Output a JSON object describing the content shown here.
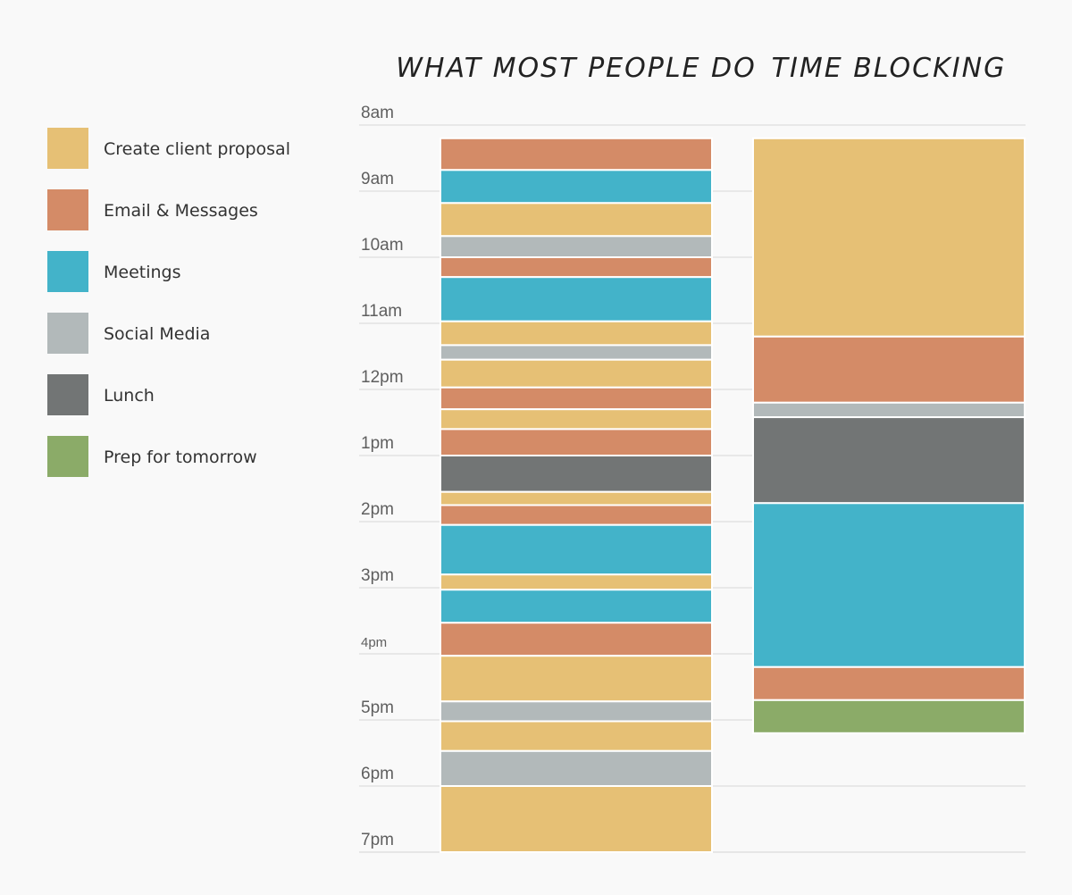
{
  "chart_data": {
    "type": "table",
    "title": "",
    "column_titles": [
      "WHAT MOST PEOPLE DO",
      "TIME BLOCKING"
    ],
    "time_labels": [
      "8am",
      "9am",
      "10am",
      "11am",
      "12pm",
      "1pm",
      "2pm",
      "3pm",
      "4pm",
      "5pm",
      "6pm",
      "7pm"
    ],
    "start_hour": 8,
    "end_hour": 19,
    "categories": [
      {
        "key": "proposal",
        "label": "Create client proposal",
        "color": "#e6c075"
      },
      {
        "key": "email",
        "label": "Email & Messages",
        "color": "#d48b67"
      },
      {
        "key": "meetings",
        "label": "Meetings",
        "color": "#43b3c9"
      },
      {
        "key": "social",
        "label": "Social Media",
        "color": "#b2b9ba"
      },
      {
        "key": "lunch",
        "label": "Lunch",
        "color": "#727575"
      },
      {
        "key": "prep",
        "label": "Prep for tomorrow",
        "color": "#8bab68"
      }
    ],
    "series": [
      {
        "name": "WHAT MOST PEOPLE DO",
        "blocks": [
          {
            "cat": "email",
            "start": 8.2,
            "end": 8.68
          },
          {
            "cat": "meetings",
            "start": 8.68,
            "end": 9.18
          },
          {
            "cat": "proposal",
            "start": 9.18,
            "end": 9.68
          },
          {
            "cat": "social",
            "start": 9.68,
            "end": 10.0
          },
          {
            "cat": "email",
            "start": 10.0,
            "end": 10.3
          },
          {
            "cat": "meetings",
            "start": 10.3,
            "end": 10.97
          },
          {
            "cat": "proposal",
            "start": 10.97,
            "end": 11.33
          },
          {
            "cat": "social",
            "start": 11.33,
            "end": 11.55
          },
          {
            "cat": "proposal",
            "start": 11.55,
            "end": 11.97
          },
          {
            "cat": "email",
            "start": 11.97,
            "end": 12.3
          },
          {
            "cat": "proposal",
            "start": 12.3,
            "end": 12.6
          },
          {
            "cat": "email",
            "start": 12.6,
            "end": 13.0
          },
          {
            "cat": "lunch",
            "start": 13.0,
            "end": 13.55
          },
          {
            "cat": "proposal",
            "start": 13.55,
            "end": 13.75
          },
          {
            "cat": "email",
            "start": 13.75,
            "end": 14.05
          },
          {
            "cat": "meetings",
            "start": 14.05,
            "end": 14.8
          },
          {
            "cat": "proposal",
            "start": 14.8,
            "end": 15.03
          },
          {
            "cat": "meetings",
            "start": 15.03,
            "end": 15.53
          },
          {
            "cat": "email",
            "start": 15.53,
            "end": 16.03
          },
          {
            "cat": "proposal",
            "start": 16.03,
            "end": 16.72
          },
          {
            "cat": "social",
            "start": 16.72,
            "end": 17.02
          },
          {
            "cat": "proposal",
            "start": 17.02,
            "end": 17.47
          },
          {
            "cat": "social",
            "start": 17.47,
            "end": 18.0
          },
          {
            "cat": "proposal",
            "start": 18.0,
            "end": 19.0
          }
        ]
      },
      {
        "name": "TIME BLOCKING",
        "blocks": [
          {
            "cat": "proposal",
            "start": 8.2,
            "end": 11.2
          },
          {
            "cat": "email",
            "start": 11.2,
            "end": 12.2
          },
          {
            "cat": "social",
            "start": 12.2,
            "end": 12.42
          },
          {
            "cat": "lunch",
            "start": 12.42,
            "end": 13.72
          },
          {
            "cat": "meetings",
            "start": 13.72,
            "end": 16.2
          },
          {
            "cat": "email",
            "start": 16.2,
            "end": 16.7
          },
          {
            "cat": "prep",
            "start": 16.7,
            "end": 17.2
          }
        ]
      }
    ]
  }
}
